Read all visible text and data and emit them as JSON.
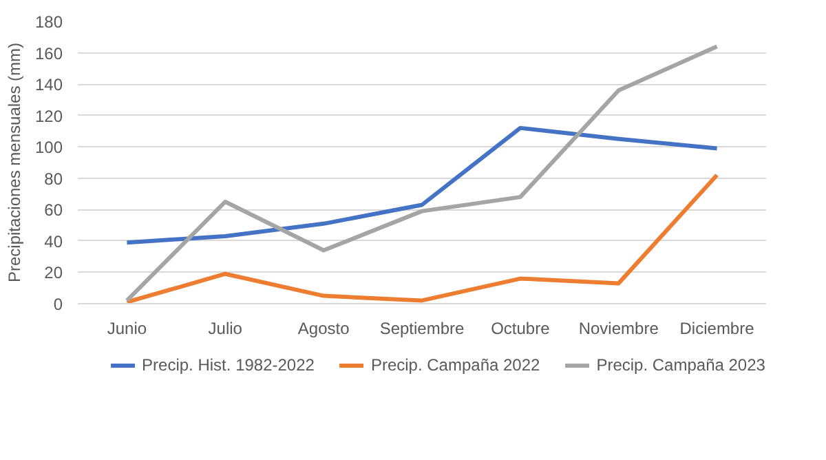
{
  "chart_data": {
    "type": "line",
    "ylabel": "Precipitaciones mensuales (mm)",
    "categories": [
      "Junio",
      "Julio",
      "Agosto",
      "Septiembre",
      "Octubre",
      "Noviembre",
      "Diciembre"
    ],
    "ylim": [
      0,
      180
    ],
    "yticks": [
      0,
      20,
      40,
      60,
      80,
      100,
      120,
      140,
      160,
      180
    ],
    "grid": "y",
    "legend": "bottom",
    "series": [
      {
        "name": "Precip. Hist. 1982-2022",
        "color": "#4472c4",
        "values": [
          39,
          43,
          51,
          63,
          112,
          105,
          99
        ]
      },
      {
        "name": "Precip. Campaña 2022",
        "color": "#ed7d31",
        "values": [
          1,
          19,
          5,
          2,
          16,
          13,
          82
        ]
      },
      {
        "name": "Precip. Campaña 2023",
        "color": "#a5a5a5",
        "values": [
          2,
          65,
          34,
          59,
          68,
          136,
          164
        ]
      }
    ]
  }
}
